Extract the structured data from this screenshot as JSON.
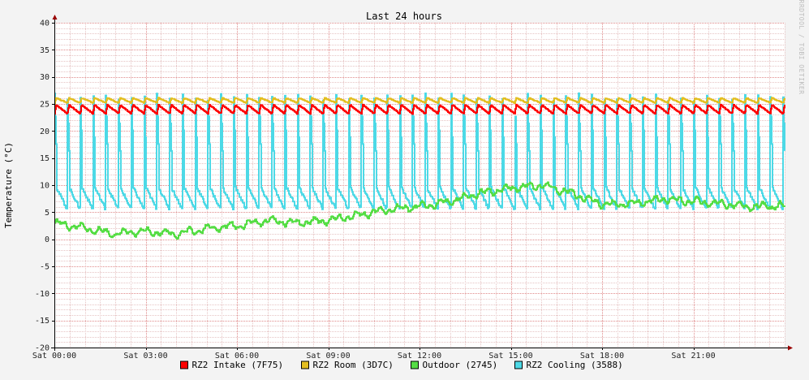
{
  "chart_data": {
    "type": "line",
    "title": "Last 24 hours",
    "ylabel": "Temperature (°C)",
    "xlabel": "",
    "watermark": "RRDTOOL / TOBI OETIKER",
    "ylim": [
      -20,
      40
    ],
    "xlim_hours": [
      0,
      24
    ],
    "y_ticks": [
      40,
      35,
      30,
      25,
      20,
      15,
      10,
      5,
      0,
      -5,
      -10,
      -15,
      -20
    ],
    "x_ticks": [
      {
        "label": "Sat 00:00",
        "hour": 0
      },
      {
        "label": "Sat 03:00",
        "hour": 3
      },
      {
        "label": "Sat 06:00",
        "hour": 6
      },
      {
        "label": "Sat 09:00",
        "hour": 9
      },
      {
        "label": "Sat 12:00",
        "hour": 12
      },
      {
        "label": "Sat 15:00",
        "hour": 15
      },
      {
        "label": "Sat 18:00",
        "hour": 18
      },
      {
        "label": "Sat 21:00",
        "hour": 21
      }
    ],
    "grid": true,
    "legend_position": "bottom",
    "colors": {
      "background": "#f3f3f3",
      "plot_background": "#ffffff",
      "minor_grid": "#e6c4c4",
      "major_grid": "#e08a8a",
      "axis": "#000000",
      "arrow": "#990000"
    },
    "series": [
      {
        "name": "RZ2 Intake (7F75)",
        "color": "#ff0000",
        "pattern": "sawtooth",
        "period_hours": 0.42,
        "min": 23.2,
        "max": 25.0,
        "anchors": [
          [
            0,
            23.8
          ],
          [
            24,
            23.8
          ]
        ]
      },
      {
        "name": "RZ2 Room (3D7C)",
        "color": "#e3be20",
        "pattern": "sawtooth",
        "period_hours": 0.42,
        "min": 25.2,
        "max": 26.2,
        "anchors": [
          [
            0,
            25.6
          ],
          [
            24,
            25.6
          ]
        ]
      },
      {
        "name": "Outdoor (2745)",
        "color": "#55dd44",
        "pattern": "trend",
        "anchors": [
          [
            0,
            3.0
          ],
          [
            1.0,
            2.0
          ],
          [
            2.0,
            1.0
          ],
          [
            3.0,
            1.5
          ],
          [
            4.0,
            1.0
          ],
          [
            5.0,
            2.0
          ],
          [
            6.0,
            2.5
          ],
          [
            7.0,
            3.5
          ],
          [
            8.0,
            3.0
          ],
          [
            9.0,
            3.5
          ],
          [
            10.0,
            4.5
          ],
          [
            11.0,
            5.5
          ],
          [
            12.0,
            6.0
          ],
          [
            13.0,
            7.0
          ],
          [
            14.0,
            8.5
          ],
          [
            15.0,
            9.5
          ],
          [
            16.0,
            10.0
          ],
          [
            17.0,
            8.5
          ],
          [
            18.0,
            6.5
          ],
          [
            19.0,
            6.5
          ],
          [
            20.0,
            7.5
          ],
          [
            21.0,
            7.0
          ],
          [
            22.0,
            6.5
          ],
          [
            23.0,
            6.0
          ],
          [
            24.0,
            6.2
          ]
        ]
      },
      {
        "name": "RZ2 Cooling (3588)",
        "color": "#4dd9e6",
        "pattern": "spikes",
        "period_hours": 0.42,
        "min": 5.5,
        "max": 27.0,
        "anchors": [
          [
            0,
            6.0
          ],
          [
            24,
            6.0
          ]
        ]
      }
    ]
  }
}
